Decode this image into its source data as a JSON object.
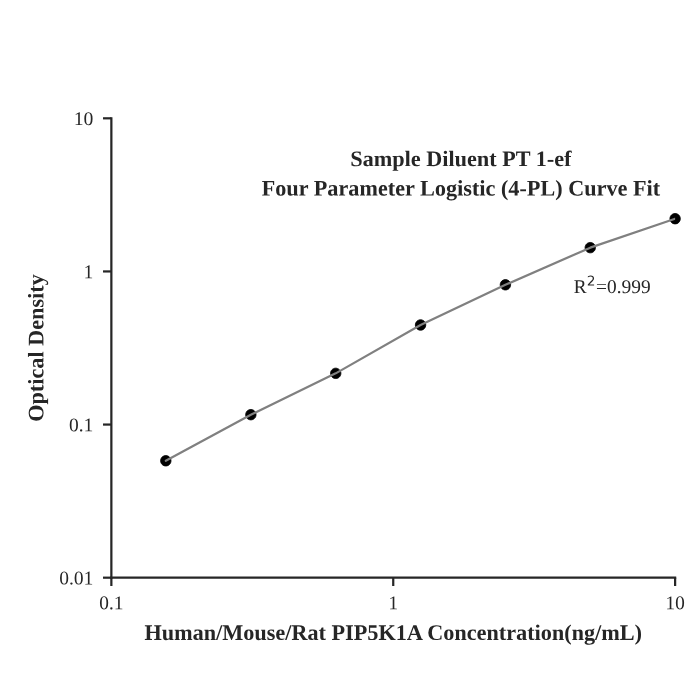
{
  "chart_data": {
    "type": "scatter",
    "title": "Sample Diluent PT 1-ef\nFour Parameter Logistic (4-PL) Curve Fit",
    "xlabel": "Human/Mouse/Rat PIP5K1A Concentration(ng/mL)",
    "ylabel": "Optical Density",
    "x": [
      0.156,
      0.3125,
      0.625,
      1.25,
      2.5,
      5,
      10
    ],
    "series": [
      {
        "type": "line",
        "color": "#808080",
        "marker": "none",
        "values": [
          0.058,
          0.116,
          0.216,
          0.447,
          0.818,
          1.43,
          2.21
        ]
      },
      {
        "color": "#000000",
        "marker": "circle",
        "values": [
          0.058,
          0.116,
          0.216,
          0.447,
          0.818,
          1.43,
          2.21
        ]
      }
    ],
    "log": "xy",
    "xlim": [
      0.1,
      10
    ],
    "ylim": [
      0.01,
      10
    ],
    "xticks": [
      0.1,
      1,
      10
    ],
    "yticks": [
      0.01,
      0.1,
      1,
      10
    ],
    "annotations": [
      "R$^{2}$=0.999"
    ],
    "grid": false,
    "legend": false
  }
}
